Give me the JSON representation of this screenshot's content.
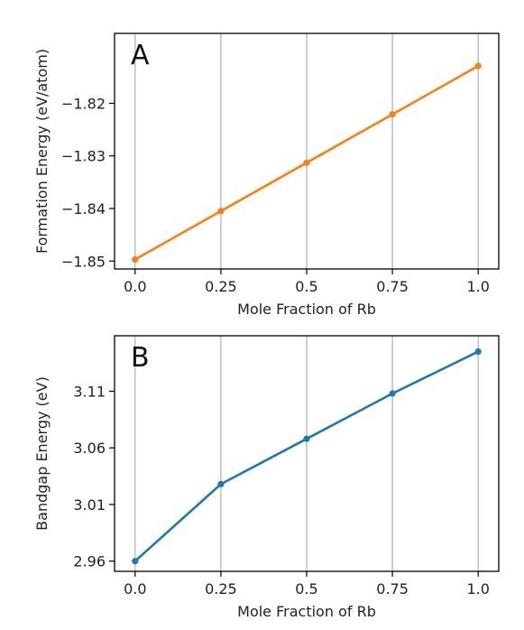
{
  "chart_data": [
    {
      "type": "line",
      "panel_label": "A",
      "x": [
        0.0,
        0.25,
        0.5,
        0.75,
        1.0
      ],
      "x_tick_labels": [
        "0.0",
        "0.25",
        "0.5",
        "0.75",
        "1.0"
      ],
      "series": [
        {
          "values": [
            -1.8497,
            -1.8405,
            -1.8313,
            -1.8221,
            -1.8129
          ],
          "color": "#ff7f0e"
        }
      ],
      "y_ticks": [
        -1.85,
        -1.84,
        -1.83,
        -1.82
      ],
      "y_tick_labels": [
        "−1.85",
        "−1.84",
        "−1.83",
        "−1.82"
      ],
      "xlabel": "Mole Fraction of Rb",
      "ylabel": "Formation Energy (eV/atom)",
      "xlim": [
        -0.06,
        1.06
      ],
      "ylim": [
        -1.8515,
        -1.8067
      ],
      "grid": "vertical"
    },
    {
      "type": "line",
      "panel_label": "B",
      "x": [
        0.0,
        0.25,
        0.5,
        0.75,
        1.0
      ],
      "x_tick_labels": [
        "0.0",
        "0.25",
        "0.5",
        "0.75",
        "1.0"
      ],
      "series": [
        {
          "values": [
            2.96,
            3.028,
            3.068,
            3.108,
            3.145
          ],
          "color": "#1f77b4"
        }
      ],
      "y_ticks": [
        2.96,
        3.01,
        3.06,
        3.11
      ],
      "y_tick_labels": [
        "2.96",
        "3.01",
        "3.06",
        "3.11"
      ],
      "xlabel": "Mole Fraction of Rb",
      "ylabel": "Bandgap Energy (eV)",
      "xlim": [
        -0.06,
        1.06
      ],
      "ylim": [
        2.951,
        3.159
      ],
      "grid": "vertical"
    }
  ]
}
